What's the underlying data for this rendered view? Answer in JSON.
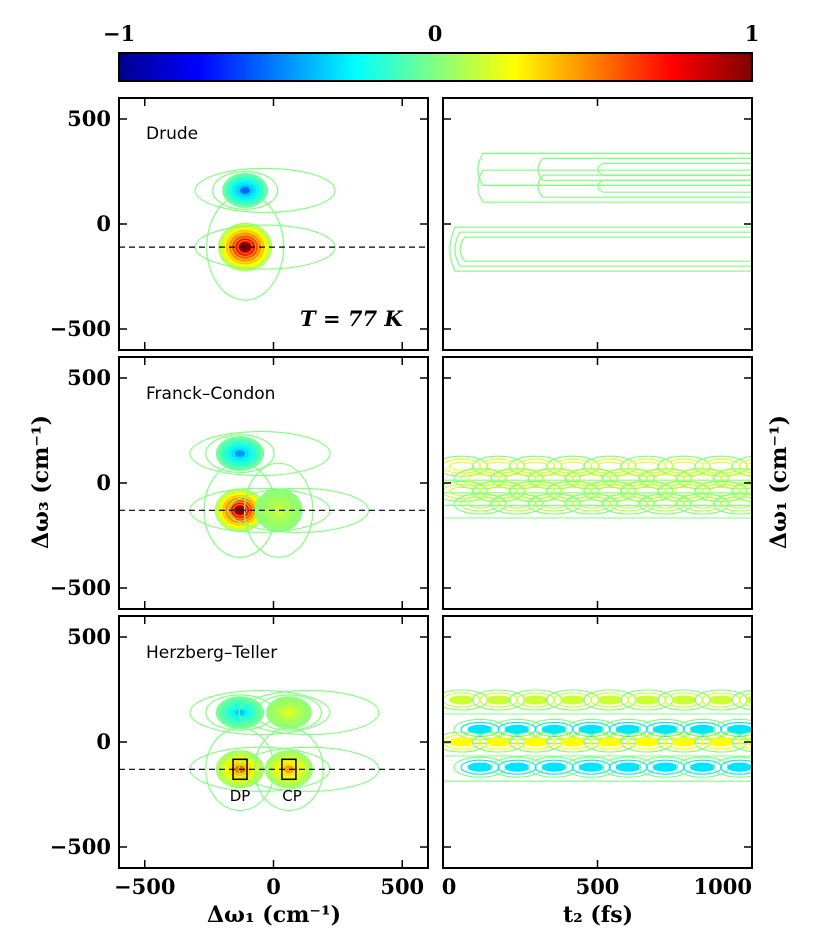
{
  "colorbar": {
    "tick_labels": [
      "−1",
      "0",
      "1"
    ],
    "colormap": "jet",
    "colors": [
      "#00008f",
      "#0000ff",
      "#0080ff",
      "#00ffff",
      "#80ff80",
      "#ffff00",
      "#ff8000",
      "#ff0000",
      "#800000"
    ]
  },
  "axis_titles": {
    "left_x": "Δω₁ (cm⁻¹)",
    "right_x": "t₂ (fs)",
    "left_y": "Δω₃ (cm⁻¹)",
    "right_y": "Δω₁ (cm⁻¹)"
  },
  "panels": [
    {
      "label": "Drude",
      "temperature_label": "T = 77 K"
    },
    {
      "label": "Franck–Condon"
    },
    {
      "label": "Herzberg–Teller",
      "annotations": [
        "DP",
        "CP"
      ]
    }
  ],
  "chart_data": [
    {
      "type": "heatmap",
      "title": "",
      "panel": "Drude",
      "xlabel": "Δω₁ (cm⁻¹)",
      "ylabel": "Δω₃ (cm⁻¹)",
      "xlim": [
        -600,
        600
      ],
      "ylim": [
        -600,
        600
      ],
      "xticks": [
        -500,
        0,
        500
      ],
      "yticks": [
        500,
        0,
        -500
      ],
      "xtick_labels": [
        "−500",
        "0",
        "500"
      ],
      "ytick_labels": [
        "500",
        "0",
        "−500"
      ],
      "dashed_line_y": -110,
      "peaks": [
        {
          "x": -110,
          "y": -110,
          "amp": 1.0,
          "sx": 45,
          "sy": 45
        },
        {
          "x": -110,
          "y": 160,
          "amp": -0.55,
          "sx": 38,
          "sy": 32
        }
      ]
    },
    {
      "type": "heatmap",
      "title": "",
      "panel": "Drude",
      "xlabel": "t₂ (fs)",
      "ylabel": "Δω₁ (cm⁻¹)",
      "xlim": [
        0,
        1000
      ],
      "ylim": [
        -600,
        600
      ],
      "bands_y": [
        -120,
        180,
        260
      ]
    },
    {
      "type": "heatmap",
      "title": "",
      "panel": "Franck–Condon",
      "xlabel": "Δω₁ (cm⁻¹)",
      "ylabel": "Δω₃ (cm⁻¹)",
      "xlim": [
        -600,
        600
      ],
      "ylim": [
        -600,
        600
      ],
      "xticks": [
        -500,
        0,
        500
      ],
      "yticks": [
        500,
        0,
        -500
      ],
      "xtick_labels": [
        "−500",
        "0",
        "500"
      ],
      "ytick_labels": [
        "500",
        "0",
        "−500"
      ],
      "dashed_line_y": -130,
      "peaks": [
        {
          "x": -130,
          "y": -130,
          "amp": 1.0,
          "sx": 42,
          "sy": 40
        },
        {
          "x": -130,
          "y": 140,
          "amp": -0.45,
          "sx": 40,
          "sy": 32
        },
        {
          "x": 20,
          "y": -130,
          "amp": 0.15,
          "sx": 40,
          "sy": 40
        }
      ]
    },
    {
      "type": "heatmap",
      "title": "",
      "panel": "Franck–Condon",
      "xlabel": "t₂ (fs)",
      "ylabel": "Δω₁ (cm⁻¹)",
      "xlim": [
        0,
        1000
      ],
      "ylim": [
        -600,
        600
      ],
      "oscillation_period_fs": 120
    },
    {
      "type": "heatmap",
      "title": "",
      "panel": "Herzberg–Teller",
      "xlabel": "Δω₁ (cm⁻¹)",
      "ylabel": "Δω₃ (cm⁻¹)",
      "xlim": [
        -600,
        600
      ],
      "ylim": [
        -600,
        600
      ],
      "xticks": [
        -500,
        0,
        500
      ],
      "yticks": [
        500,
        0,
        -500
      ],
      "xtick_labels": [
        "−500",
        "0",
        "500"
      ],
      "ytick_labels": [
        "500",
        "0",
        "−500"
      ],
      "dashed_line_y": -130,
      "peaks": [
        {
          "x": -130,
          "y": -130,
          "amp": 0.55,
          "sx": 40,
          "sy": 35
        },
        {
          "x": 60,
          "y": -130,
          "amp": 0.45,
          "sx": 40,
          "sy": 35
        },
        {
          "x": -130,
          "y": 140,
          "amp": -0.35,
          "sx": 40,
          "sy": 30
        },
        {
          "x": 60,
          "y": 140,
          "amp": 0.2,
          "sx": 38,
          "sy": 30
        }
      ],
      "boxes": [
        {
          "label": "DP",
          "x": -130,
          "y": -130
        },
        {
          "label": "CP",
          "x": 60,
          "y": -130
        }
      ]
    },
    {
      "type": "heatmap",
      "title": "",
      "panel": "Herzberg–Teller",
      "xlabel": "t₂ (fs)",
      "ylabel": "Δω₁ (cm⁻¹)",
      "xlim": [
        0,
        1000
      ],
      "ylim": [
        -600,
        600
      ],
      "xticks": [
        0,
        500,
        1000
      ],
      "xtick_labels": [
        "0",
        "500",
        "1000"
      ],
      "oscillation_period_fs": 120
    }
  ]
}
